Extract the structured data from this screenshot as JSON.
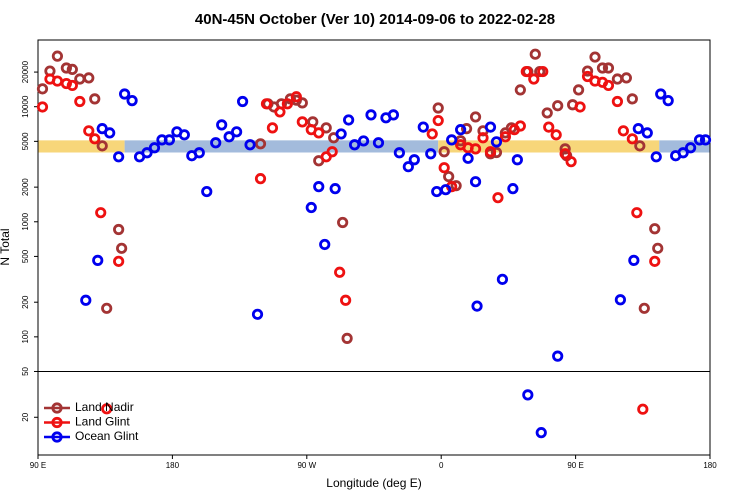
{
  "chart_data": {
    "type": "scatter",
    "title": "40N-45N October (Ver 10)   2014-09-06 to 2022-02-28",
    "x_label": "Longitude (deg E)",
    "y_label": "N Total",
    "log_y": true,
    "legend": "lower left",
    "xlim": [
      90,
      540
    ],
    "ylim": [
      9.4,
      38000
    ],
    "xticks": [
      {
        "value": 90,
        "label": "90 E"
      },
      180,
      {
        "value": 270,
        "label": "90 W"
      },
      {
        "value": 360,
        "label": "0"
      },
      {
        "value": 450,
        "label": "90 E"
      },
      {
        "value": 540,
        "label": "180"
      }
    ],
    "yticks": [
      20,
      50,
      100,
      200,
      500,
      1000,
      2000,
      5000,
      10000,
      20000
    ],
    "hline": 50,
    "bands": [
      {
        "color": "#f7d67a",
        "xlim": [
          90,
          148
        ],
        "ylim": [
          4000,
          5100
        ]
      },
      {
        "color": "#a3bbdc",
        "xlim": [
          148,
          358
        ],
        "ylim": [
          4000,
          5100
        ]
      },
      {
        "color": "#f7d67a",
        "xlim": [
          358,
          506
        ],
        "ylim": [
          4000,
          5100
        ]
      },
      {
        "color": "#a3bbdc",
        "xlim": [
          506,
          540
        ],
        "ylim": [
          4000,
          5100
        ]
      }
    ],
    "series": [
      {
        "name": "Land Nadir",
        "color": "#a33434",
        "x": [
          93,
          98,
          103,
          109,
          113,
          118,
          124,
          128,
          133,
          136,
          144,
          146,
          239,
          244,
          248,
          253,
          259,
          263,
          267,
          274,
          278,
          283,
          288,
          294,
          297,
          358,
          362,
          365,
          370,
          373,
          377,
          383,
          388,
          393,
          397,
          403,
          407,
          413,
          418,
          423,
          426,
          431,
          438,
          443,
          444,
          448,
          452,
          458,
          463,
          468,
          472,
          478,
          484,
          488,
          493,
          496,
          503,
          505
        ],
        "values": [
          14300,
          20400,
          27500,
          21700,
          21100,
          17400,
          17800,
          11700,
          4570,
          177,
          857,
          588,
          4760,
          10600,
          9950,
          10600,
          11700,
          11400,
          10800,
          7380,
          3390,
          6550,
          5370,
          986,
          97,
          9750,
          4060,
          2470,
          2060,
          5060,
          6450,
          8150,
          6170,
          3900,
          4000,
          5920,
          6550,
          14000,
          20200,
          28600,
          20200,
          8830,
          10200,
          4300,
          3750,
          10400,
          14000,
          20400,
          27000,
          21700,
          21700,
          17400,
          17800,
          11700,
          4570,
          177,
          870,
          588
        ]
      },
      {
        "name": "Land Glint",
        "color": "#ee1111",
        "x": [
          93,
          98,
          103,
          109,
          113,
          118,
          124,
          128,
          132,
          136,
          144,
          239,
          243,
          247,
          252,
          257,
          263,
          267,
          273,
          278,
          283,
          287,
          292,
          296,
          354,
          358,
          362,
          367,
          373,
          378,
          383,
          388,
          393,
          398,
          403,
          409,
          413,
          417,
          422,
          428,
          432,
          437,
          443,
          447,
          453,
          458,
          463,
          468,
          472,
          478,
          482,
          488,
          491,
          495,
          503
        ],
        "values": [
          9950,
          17400,
          16700,
          15900,
          15300,
          11100,
          6170,
          5260,
          1200,
          23.7,
          453,
          2370,
          10600,
          6550,
          9010,
          10600,
          12200,
          7380,
          6320,
          5920,
          3670,
          4060,
          364,
          208,
          5800,
          7580,
          2950,
          2020,
          4670,
          4400,
          4300,
          5370,
          4060,
          1620,
          5480,
          6320,
          6800,
          20200,
          17400,
          20200,
          6650,
          5700,
          3900,
          3330,
          9950,
          18300,
          16700,
          16300,
          15300,
          11100,
          6170,
          5260,
          1200,
          23.5,
          453
        ]
      },
      {
        "name": "Ocean Glint",
        "color": "#0000ee",
        "x": [
          122,
          130,
          133,
          138,
          144,
          148,
          153,
          158,
          163,
          168,
          173,
          178,
          183,
          188,
          193,
          198,
          203,
          209,
          213,
          218,
          223,
          227,
          232,
          237,
          273,
          278,
          282,
          289,
          293,
          298,
          302,
          308,
          313,
          318,
          323,
          328,
          332,
          338,
          342,
          348,
          353,
          357,
          363,
          367,
          373,
          378,
          383,
          384,
          393,
          397,
          401,
          408,
          411,
          418,
          427,
          438,
          480,
          489,
          492,
          498,
          504,
          507,
          512,
          517,
          522,
          527,
          533,
          537
        ],
        "values": [
          208,
          462,
          6450,
          5920,
          3670,
          12900,
          11300,
          3670,
          3980,
          4400,
          5150,
          5150,
          6050,
          5700,
          3750,
          3980,
          1830,
          4860,
          6950,
          5480,
          6050,
          11100,
          4670,
          157,
          1330,
          2020,
          635,
          1940,
          5800,
          7670,
          4670,
          5040,
          8490,
          4860,
          8010,
          8490,
          3980,
          3010,
          3460,
          6650,
          3900,
          1830,
          1900,
          5150,
          6320,
          3560,
          2230,
          185,
          6650,
          4950,
          316,
          1940,
          3460,
          31.3,
          14.7,
          68,
          210,
          462,
          6450,
          5920,
          3670,
          12900,
          11300,
          3750,
          3980,
          4400,
          5150,
          5150
        ]
      }
    ]
  }
}
